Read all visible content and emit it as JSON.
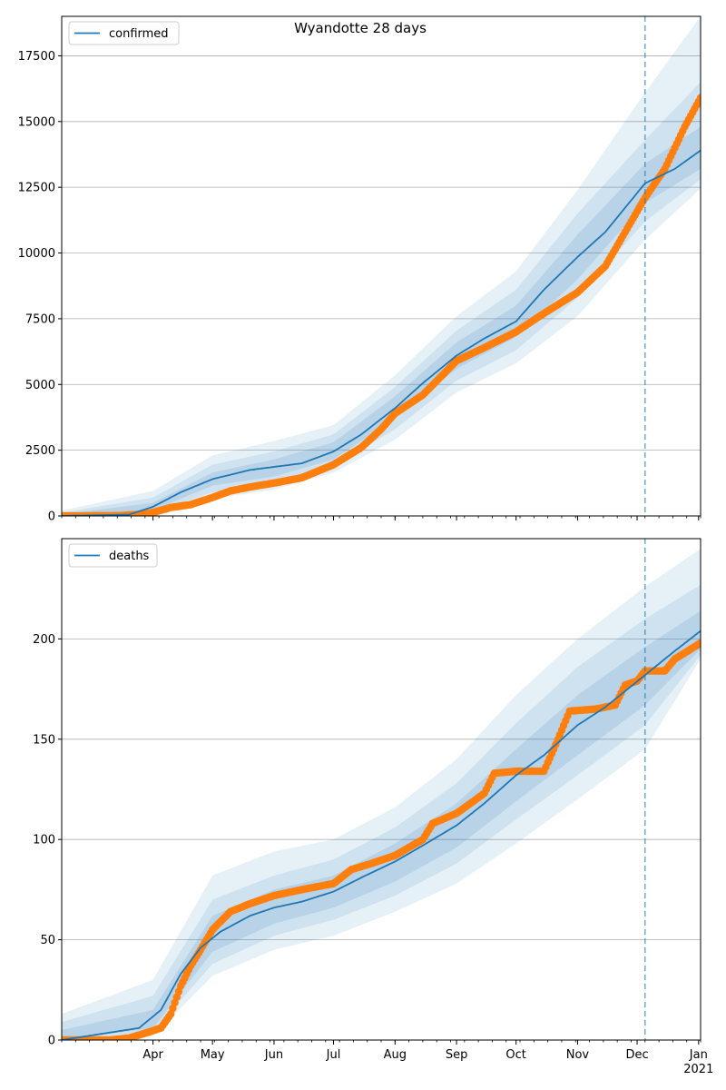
{
  "title": "Wyandotte 28 days",
  "colors": {
    "line": "#1f77b4",
    "points": "#ff7f0e",
    "band": "#1f77b4",
    "grid": "#b0b0b0"
  },
  "x_axis": {
    "start": "2020-02-15",
    "end": "2021-01-02",
    "month_labels": [
      "Apr",
      "May",
      "Jun",
      "Jul",
      "Aug",
      "Sep",
      "Oct",
      "Nov",
      "Dec",
      "Jan"
    ],
    "month_ticks": [
      "2020-04-01",
      "2020-05-01",
      "2020-06-01",
      "2020-07-01",
      "2020-08-01",
      "2020-09-01",
      "2020-10-01",
      "2020-11-01",
      "2020-12-01",
      "2021-01-01"
    ],
    "year_label": "2021",
    "forecast_date": "2020-12-05"
  },
  "chart_data": [
    {
      "type": "line",
      "name": "confirmed",
      "legend": "confirmed",
      "legend_position": "top-left",
      "grid": "y",
      "ylim": [
        0,
        19000
      ],
      "yticks": [
        0,
        2500,
        5000,
        7500,
        10000,
        12500,
        15000,
        17500
      ],
      "ytick_labels": [
        "0",
        "2500",
        "5000",
        "7500",
        "10000",
        "12500",
        "15000",
        "17500"
      ],
      "model_line": [
        [
          "2020-02-15",
          0
        ],
        [
          "2020-03-20",
          50
        ],
        [
          "2020-04-01",
          350
        ],
        [
          "2020-04-15",
          900
        ],
        [
          "2020-05-01",
          1400
        ],
        [
          "2020-05-20",
          1750
        ],
        [
          "2020-06-15",
          2000
        ],
        [
          "2020-07-01",
          2450
        ],
        [
          "2020-07-15",
          3100
        ],
        [
          "2020-08-01",
          4100
        ],
        [
          "2020-08-15",
          5050
        ],
        [
          "2020-09-01",
          6100
        ],
        [
          "2020-09-15",
          6750
        ],
        [
          "2020-10-01",
          7400
        ],
        [
          "2020-10-15",
          8600
        ],
        [
          "2020-11-01",
          9850
        ],
        [
          "2020-11-15",
          10800
        ],
        [
          "2020-12-05",
          12650
        ],
        [
          "2020-12-20",
          13200
        ],
        [
          "2021-01-02",
          13900
        ]
      ],
      "band_inner": [
        [
          [
            "2020-02-15",
            0
          ],
          [
            "2020-04-01",
            220
          ],
          [
            "2020-05-01",
            1150
          ],
          [
            "2020-06-01",
            1500
          ],
          [
            "2020-07-01",
            2150
          ],
          [
            "2020-08-01",
            3700
          ],
          [
            "2020-09-01",
            5600
          ],
          [
            "2020-10-01",
            6800
          ],
          [
            "2020-11-01",
            9000
          ],
          [
            "2020-12-05",
            11900
          ],
          [
            "2021-01-02",
            13200
          ]
        ],
        [
          [
            "2020-02-15",
            60
          ],
          [
            "2020-04-01",
            500
          ],
          [
            "2020-05-01",
            1650
          ],
          [
            "2020-06-01",
            2150
          ],
          [
            "2020-07-01",
            2800
          ],
          [
            "2020-08-01",
            4550
          ],
          [
            "2020-09-01",
            6600
          ],
          [
            "2020-10-01",
            8000
          ],
          [
            "2020-11-01",
            10700
          ],
          [
            "2020-12-05",
            13400
          ],
          [
            "2021-01-02",
            14800
          ]
        ]
      ],
      "band_mid": [
        [
          [
            "2020-02-15",
            0
          ],
          [
            "2020-04-01",
            130
          ],
          [
            "2020-05-01",
            900
          ],
          [
            "2020-06-01",
            1250
          ],
          [
            "2020-07-01",
            1900
          ],
          [
            "2020-08-01",
            3300
          ],
          [
            "2020-09-01",
            5150
          ],
          [
            "2020-10-01",
            6300
          ],
          [
            "2020-11-01",
            8300
          ],
          [
            "2020-12-05",
            11200
          ],
          [
            "2021-01-02",
            12800
          ]
        ],
        [
          [
            "2020-02-15",
            120
          ],
          [
            "2020-04-01",
            700
          ],
          [
            "2020-05-01",
            1950
          ],
          [
            "2020-06-01",
            2450
          ],
          [
            "2020-07-01",
            3100
          ],
          [
            "2020-08-01",
            4900
          ],
          [
            "2020-09-01",
            7050
          ],
          [
            "2020-10-01",
            8600
          ],
          [
            "2020-11-01",
            11500
          ],
          [
            "2020-12-05",
            14300
          ],
          [
            "2021-01-02",
            16500
          ]
        ]
      ],
      "band_outer": [
        [
          [
            "2020-02-15",
            0
          ],
          [
            "2020-04-01",
            60
          ],
          [
            "2020-05-01",
            650
          ],
          [
            "2020-06-01",
            1000
          ],
          [
            "2020-07-01",
            1650
          ],
          [
            "2020-08-01",
            2900
          ],
          [
            "2020-09-01",
            4700
          ],
          [
            "2020-10-01",
            5800
          ],
          [
            "2020-11-01",
            7600
          ],
          [
            "2020-12-05",
            10500
          ],
          [
            "2021-01-02",
            12450
          ]
        ],
        [
          [
            "2020-02-15",
            200
          ],
          [
            "2020-04-01",
            950
          ],
          [
            "2020-05-01",
            2300
          ],
          [
            "2020-06-01",
            2850
          ],
          [
            "2020-07-01",
            3450
          ],
          [
            "2020-08-01",
            5350
          ],
          [
            "2020-09-01",
            7600
          ],
          [
            "2020-10-01",
            9300
          ],
          [
            "2020-11-01",
            12400
          ],
          [
            "2020-12-05",
            16100
          ],
          [
            "2021-01-02",
            19000
          ]
        ]
      ],
      "observed": [
        [
          "2020-02-15",
          0
        ],
        [
          "2020-03-15",
          10
        ],
        [
          "2020-03-25",
          60
        ],
        [
          "2020-04-01",
          130
        ],
        [
          "2020-04-10",
          320
        ],
        [
          "2020-04-20",
          430
        ],
        [
          "2020-05-01",
          700
        ],
        [
          "2020-05-10",
          950
        ],
        [
          "2020-05-20",
          1100
        ],
        [
          "2020-06-01",
          1250
        ],
        [
          "2020-06-15",
          1450
        ],
        [
          "2020-07-01",
          1950
        ],
        [
          "2020-07-15",
          2600
        ],
        [
          "2020-07-25",
          3300
        ],
        [
          "2020-08-01",
          3900
        ],
        [
          "2020-08-15",
          4600
        ],
        [
          "2020-09-01",
          5900
        ],
        [
          "2020-09-15",
          6400
        ],
        [
          "2020-10-01",
          7000
        ],
        [
          "2020-10-15",
          7700
        ],
        [
          "2020-11-01",
          8500
        ],
        [
          "2020-11-15",
          9500
        ],
        [
          "2020-11-25",
          10800
        ],
        [
          "2020-12-05",
          12100
        ],
        [
          "2020-12-15",
          13200
        ],
        [
          "2020-12-25",
          14800
        ],
        [
          "2021-01-02",
          15900
        ]
      ]
    },
    {
      "type": "line",
      "name": "deaths",
      "legend": "deaths",
      "legend_position": "top-left",
      "grid": "y",
      "ylim": [
        0,
        250
      ],
      "yticks": [
        0,
        50,
        100,
        150,
        200
      ],
      "ytick_labels": [
        "0",
        "50",
        "100",
        "150",
        "200"
      ],
      "model_line": [
        [
          "2020-02-15",
          0
        ],
        [
          "2020-03-25",
          6
        ],
        [
          "2020-04-05",
          15
        ],
        [
          "2020-04-15",
          33
        ],
        [
          "2020-04-25",
          46
        ],
        [
          "2020-05-05",
          54
        ],
        [
          "2020-05-20",
          62
        ],
        [
          "2020-06-01",
          66
        ],
        [
          "2020-06-15",
          69
        ],
        [
          "2020-07-01",
          74
        ],
        [
          "2020-07-15",
          81
        ],
        [
          "2020-08-01",
          89
        ],
        [
          "2020-08-15",
          97
        ],
        [
          "2020-09-01",
          107
        ],
        [
          "2020-09-15",
          118
        ],
        [
          "2020-10-01",
          132
        ],
        [
          "2020-10-15",
          142
        ],
        [
          "2020-11-01",
          157
        ],
        [
          "2020-11-15",
          166
        ],
        [
          "2020-12-05",
          182
        ],
        [
          "2020-12-20",
          194
        ],
        [
          "2021-01-02",
          204
        ]
      ],
      "band_inner": [
        [
          [
            "2020-02-15",
            0
          ],
          [
            "2020-04-01",
            6
          ],
          [
            "2020-05-01",
            44
          ],
          [
            "2020-06-01",
            58
          ],
          [
            "2020-07-01",
            66
          ],
          [
            "2020-08-01",
            79
          ],
          [
            "2020-09-01",
            96
          ],
          [
            "2020-10-01",
            119
          ],
          [
            "2020-11-01",
            142
          ],
          [
            "2020-12-05",
            167
          ],
          [
            "2021-01-02",
            195
          ]
        ],
        [
          [
            "2020-02-15",
            5
          ],
          [
            "2020-04-01",
            15
          ],
          [
            "2020-05-01",
            62
          ],
          [
            "2020-06-01",
            75
          ],
          [
            "2020-07-01",
            82
          ],
          [
            "2020-08-01",
            98
          ],
          [
            "2020-09-01",
            118
          ],
          [
            "2020-10-01",
            145
          ],
          [
            "2020-11-01",
            172
          ],
          [
            "2020-12-05",
            196
          ],
          [
            "2021-01-02",
            214
          ]
        ]
      ],
      "band_mid": [
        [
          [
            "2020-02-15",
            0
          ],
          [
            "2020-04-01",
            4
          ],
          [
            "2020-05-01",
            38
          ],
          [
            "2020-06-01",
            52
          ],
          [
            "2020-07-01",
            60
          ],
          [
            "2020-08-01",
            72
          ],
          [
            "2020-09-01",
            88
          ],
          [
            "2020-10-01",
            110
          ],
          [
            "2020-11-01",
            132
          ],
          [
            "2020-12-05",
            157
          ],
          [
            "2021-01-02",
            192
          ]
        ],
        [
          [
            "2020-02-15",
            9
          ],
          [
            "2020-04-01",
            22
          ],
          [
            "2020-05-01",
            70
          ],
          [
            "2020-06-01",
            82
          ],
          [
            "2020-07-01",
            90
          ],
          [
            "2020-08-01",
            106
          ],
          [
            "2020-09-01",
            128
          ],
          [
            "2020-10-01",
            158
          ],
          [
            "2020-11-01",
            186
          ],
          [
            "2020-12-05",
            210
          ],
          [
            "2021-01-02",
            227
          ]
        ]
      ],
      "band_outer": [
        [
          [
            "2020-02-15",
            0
          ],
          [
            "2020-04-01",
            2
          ],
          [
            "2020-05-01",
            32
          ],
          [
            "2020-06-01",
            45
          ],
          [
            "2020-07-01",
            52
          ],
          [
            "2020-08-01",
            64
          ],
          [
            "2020-09-01",
            78
          ],
          [
            "2020-10-01",
            98
          ],
          [
            "2020-11-01",
            120
          ],
          [
            "2020-12-05",
            145
          ],
          [
            "2021-01-02",
            190
          ]
        ],
        [
          [
            "2020-02-15",
            13
          ],
          [
            "2020-04-01",
            30
          ],
          [
            "2020-05-01",
            82
          ],
          [
            "2020-06-01",
            94
          ],
          [
            "2020-07-01",
            100
          ],
          [
            "2020-08-01",
            116
          ],
          [
            "2020-09-01",
            140
          ],
          [
            "2020-10-01",
            172
          ],
          [
            "2020-11-01",
            200
          ],
          [
            "2020-12-05",
            226
          ],
          [
            "2021-01-02",
            245
          ]
        ]
      ],
      "observed": [
        [
          "2020-02-15",
          0
        ],
        [
          "2020-03-10",
          0
        ],
        [
          "2020-03-20",
          1
        ],
        [
          "2020-03-30",
          4
        ],
        [
          "2020-04-05",
          6
        ],
        [
          "2020-04-10",
          13
        ],
        [
          "2020-04-15",
          27
        ],
        [
          "2020-04-20",
          37
        ],
        [
          "2020-04-25",
          45
        ],
        [
          "2020-05-01",
          55
        ],
        [
          "2020-05-10",
          64
        ],
        [
          "2020-05-20",
          68
        ],
        [
          "2020-06-01",
          72
        ],
        [
          "2020-06-15",
          75
        ],
        [
          "2020-07-01",
          78
        ],
        [
          "2020-07-10",
          85
        ],
        [
          "2020-07-20",
          88
        ],
        [
          "2020-08-01",
          92
        ],
        [
          "2020-08-15",
          100
        ],
        [
          "2020-08-20",
          108
        ],
        [
          "2020-09-01",
          113
        ],
        [
          "2020-09-15",
          123
        ],
        [
          "2020-09-20",
          133
        ],
        [
          "2020-10-01",
          134
        ],
        [
          "2020-10-15",
          134
        ],
        [
          "2020-10-20",
          145
        ],
        [
          "2020-10-28",
          164
        ],
        [
          "2020-11-10",
          165
        ],
        [
          "2020-11-20",
          167
        ],
        [
          "2020-11-25",
          177
        ],
        [
          "2020-12-01",
          179
        ],
        [
          "2020-12-05",
          184
        ],
        [
          "2020-12-15",
          184
        ],
        [
          "2020-12-20",
          190
        ],
        [
          "2020-12-25",
          193
        ],
        [
          "2021-01-02",
          198
        ]
      ]
    }
  ]
}
